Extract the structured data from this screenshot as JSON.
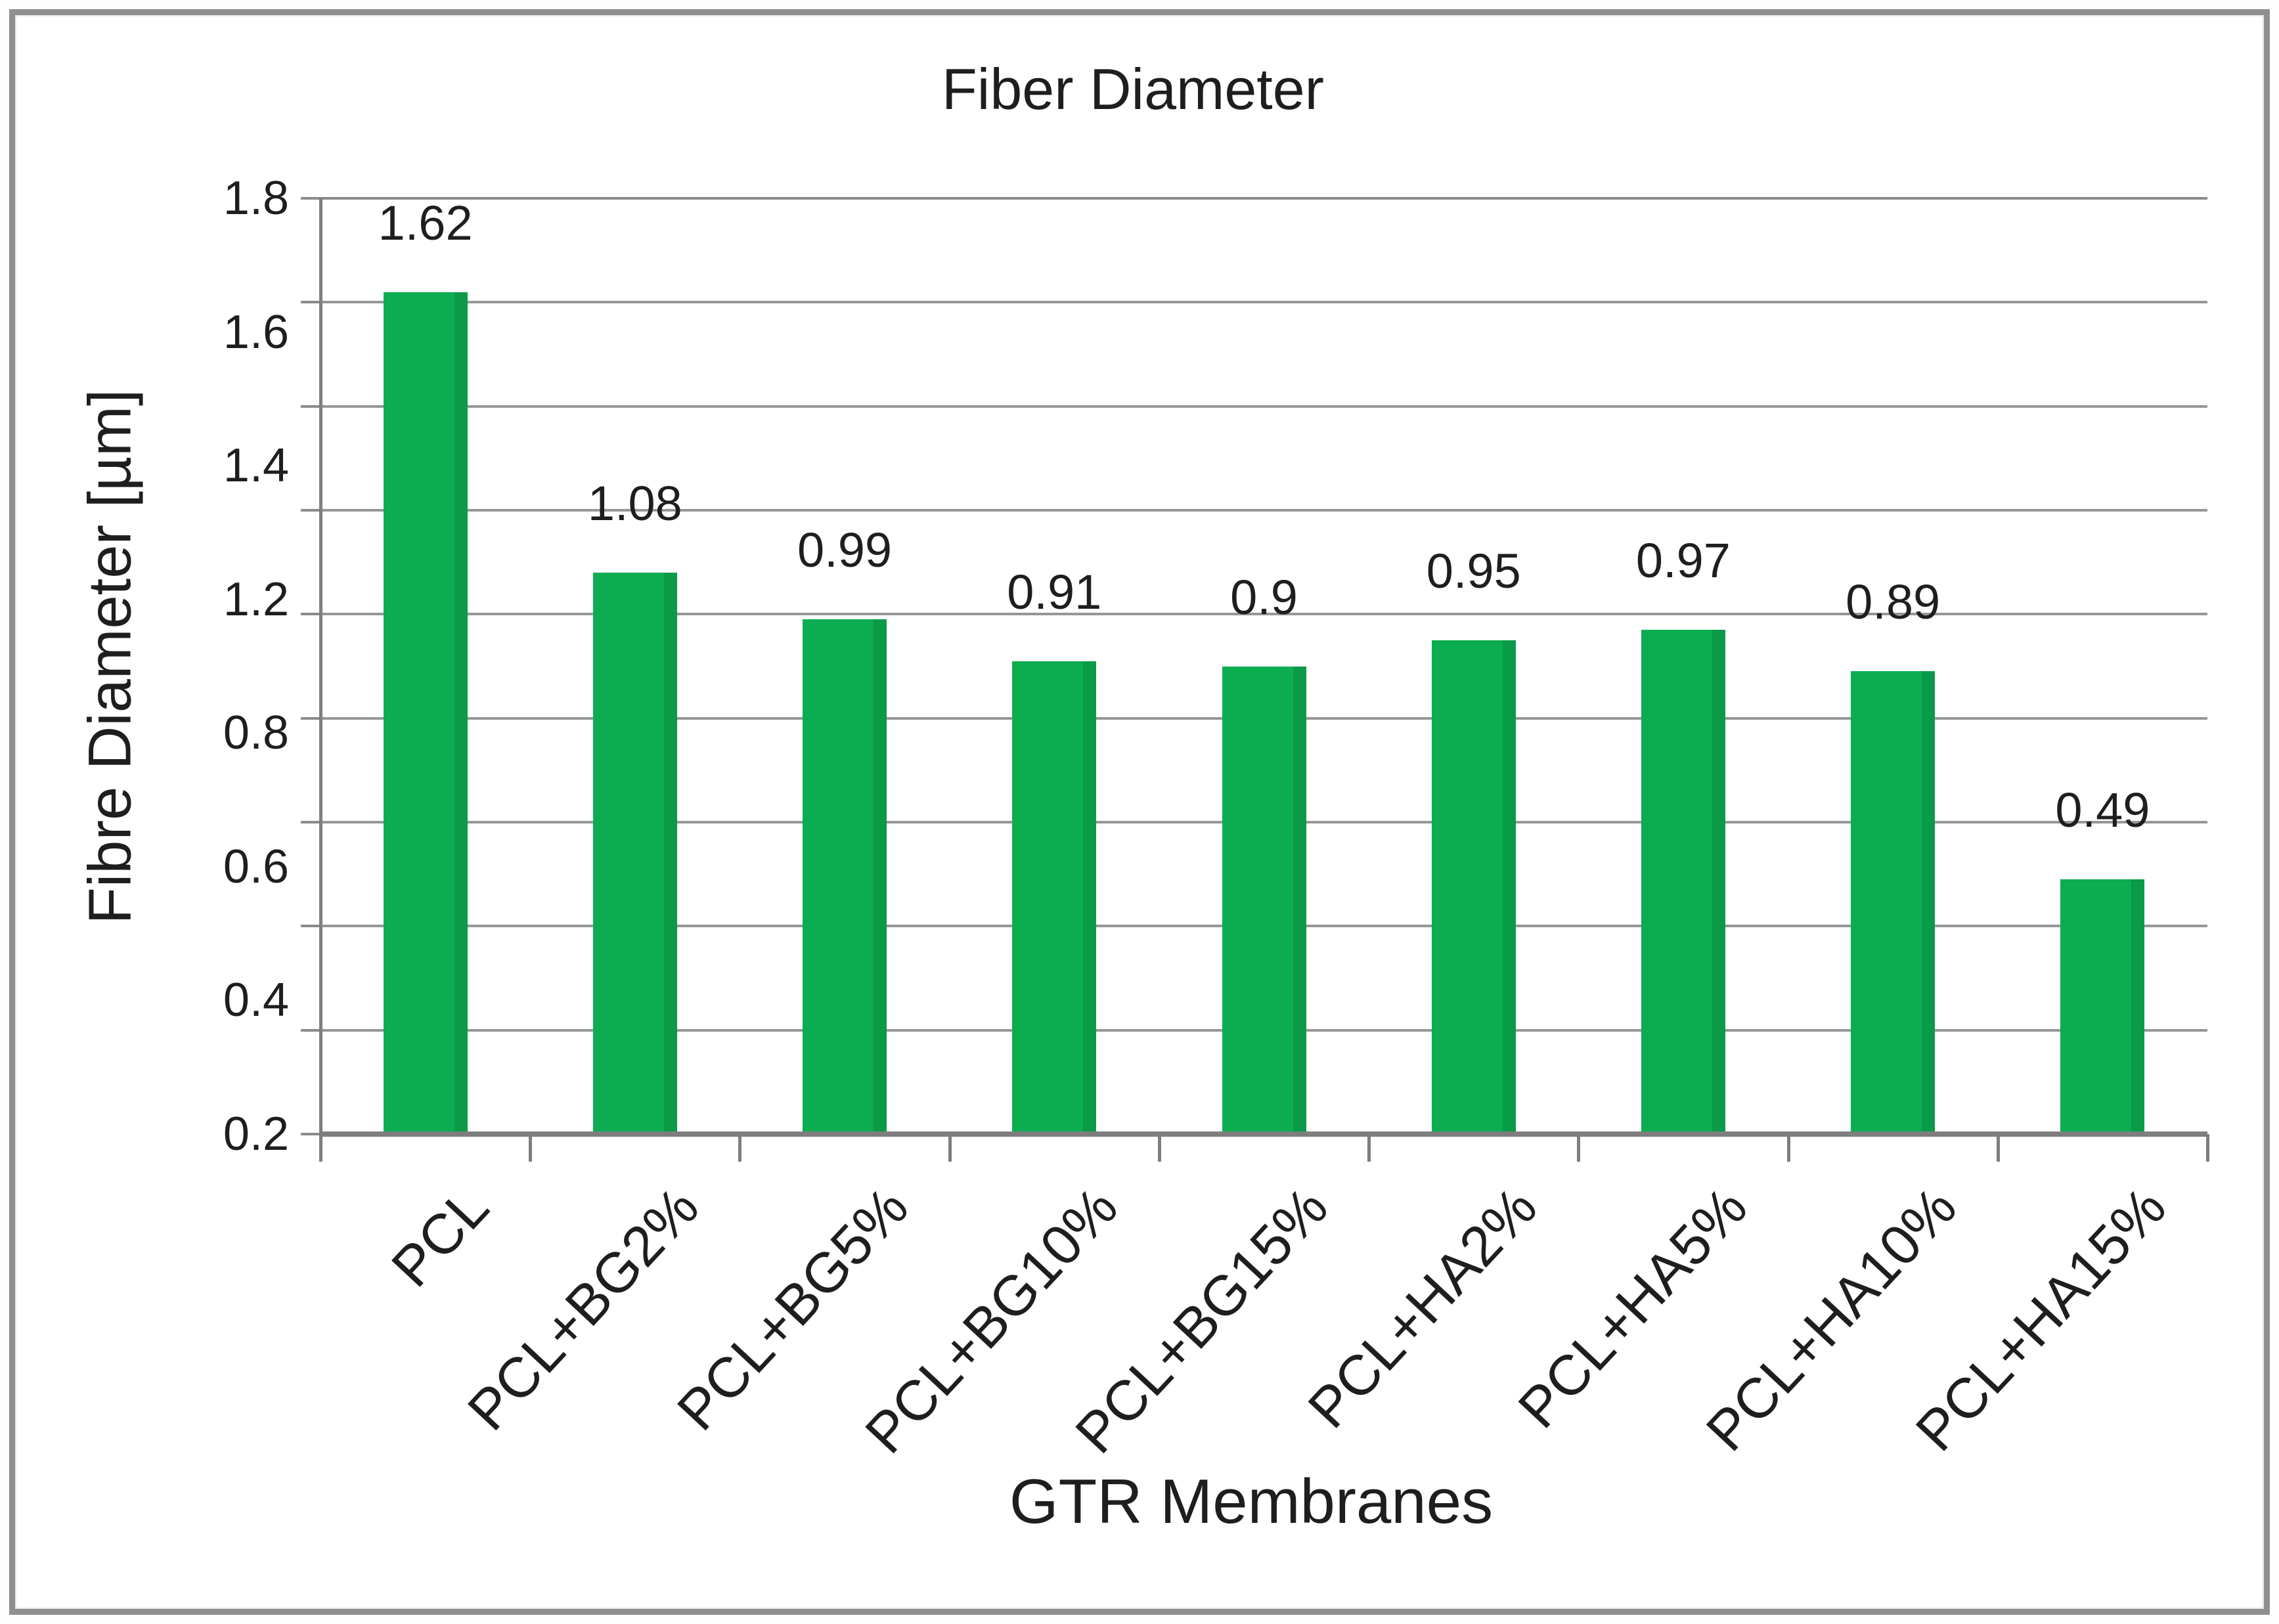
{
  "chart": {
    "title": "Fiber Diameter",
    "y_axis_title": "Fibre Diameter [µm]",
    "x_axis_title": "GTR Membranes"
  },
  "chart_data": {
    "type": "bar",
    "title": "Fiber Diameter",
    "xlabel": "GTR Membranes",
    "ylabel": "Fibre Diameter [µm]",
    "categories": [
      "PCL",
      "PCL+BG2%",
      "PCL+BG5%",
      "PCL+BG10%",
      "PCL+BG15%",
      "PCL+HA2%",
      "PCL+HA5%",
      "PCL+HA10%",
      "PCL+HA15%"
    ],
    "values": [
      1.62,
      1.08,
      0.99,
      0.91,
      0.9,
      0.95,
      0.97,
      0.89,
      0.49
    ],
    "data_labels": [
      "1.62",
      "1.08",
      "0.99",
      "0.91",
      "0.9",
      "0.95",
      "0.97",
      "0.89",
      "0.49"
    ],
    "y_tick_labels": [
      "1.8",
      "1.6",
      "1.4",
      "1.2",
      "0.8",
      "0.6",
      "0.4",
      "0.2"
    ],
    "ylim": [
      0,
      1.8
    ],
    "gridline_step": 0.2,
    "grid": true,
    "legend": false,
    "bar_color": "#0cad51",
    "bar_edge_color": "#0a9a48",
    "gridline_color": "#979797",
    "axis_color": "#7e7e7e",
    "figure_border_color": "#8f8f8f",
    "text_color": "#1e1e1e",
    "background_color": "#ffffff"
  }
}
